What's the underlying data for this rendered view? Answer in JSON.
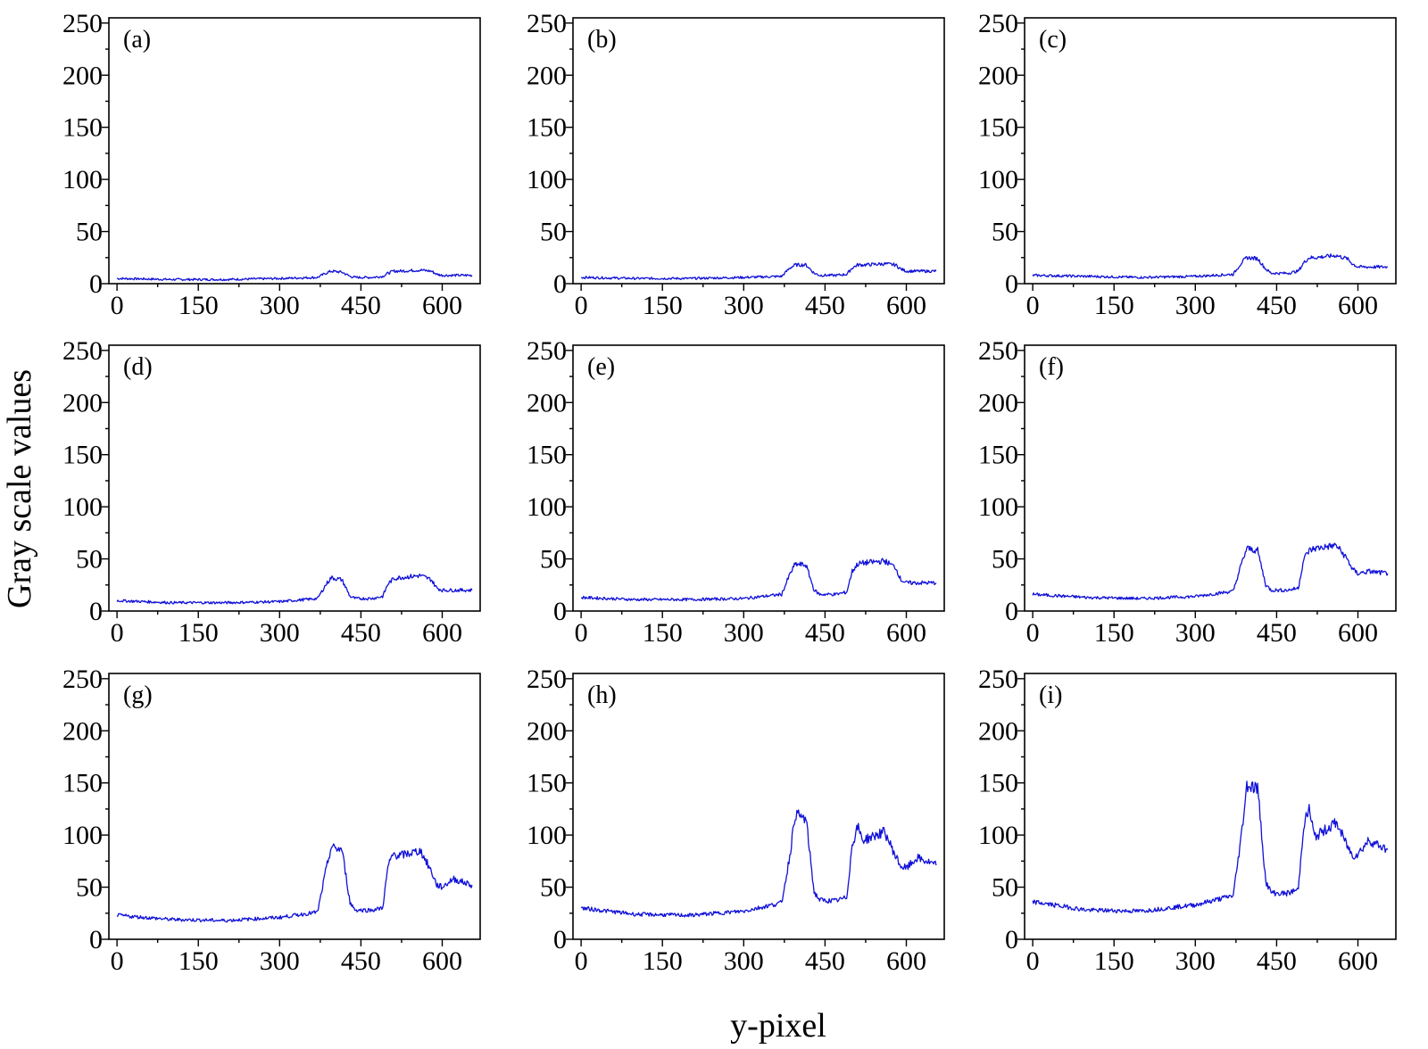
{
  "figure": {
    "ylabel": "Gray scale values",
    "xlabel": "y-pixel"
  },
  "style": {
    "line_color": "#1010d8",
    "axis_color": "#000000"
  },
  "chart_data": [
    {
      "type": "line",
      "panel_label": "(a)",
      "xlim": [
        -15,
        670
      ],
      "ylim": [
        0,
        255
      ],
      "xticks": [
        0,
        150,
        300,
        450,
        600
      ],
      "yticks": [
        0,
        50,
        100,
        150,
        200,
        250
      ],
      "grid": false,
      "series": [
        {
          "x": [
            0,
            100,
            200,
            300,
            370,
            385,
            395,
            415,
            430,
            440,
            450,
            470,
            490,
            500,
            510,
            520,
            560,
            580,
            590,
            600,
            620,
            655
          ],
          "y": [
            5,
            4,
            4,
            5,
            6,
            10,
            12,
            11,
            7,
            6,
            6,
            6,
            7,
            10,
            12,
            12,
            13,
            12,
            9,
            8,
            8,
            8
          ]
        }
      ]
    },
    {
      "type": "line",
      "panel_label": "(b)",
      "xlim": [
        -15,
        670
      ],
      "ylim": [
        0,
        255
      ],
      "xticks": [
        0,
        150,
        300,
        450,
        600
      ],
      "yticks": [
        0,
        50,
        100,
        150,
        200,
        250
      ],
      "grid": false,
      "series": [
        {
          "x": [
            0,
            100,
            200,
            300,
            370,
            385,
            395,
            415,
            430,
            440,
            450,
            470,
            490,
            500,
            510,
            520,
            560,
            580,
            590,
            600,
            620,
            655
          ],
          "y": [
            6,
            5,
            5,
            6,
            7,
            15,
            18,
            18,
            10,
            8,
            8,
            8,
            9,
            15,
            18,
            18,
            19,
            18,
            14,
            12,
            12,
            12
          ]
        }
      ]
    },
    {
      "type": "line",
      "panel_label": "(c)",
      "xlim": [
        -15,
        670
      ],
      "ylim": [
        0,
        255
      ],
      "xticks": [
        0,
        150,
        300,
        450,
        600
      ],
      "yticks": [
        0,
        50,
        100,
        150,
        200,
        250
      ],
      "grid": false,
      "series": [
        {
          "x": [
            0,
            100,
            200,
            300,
            370,
            385,
            395,
            415,
            430,
            440,
            450,
            470,
            490,
            500,
            510,
            520,
            560,
            580,
            590,
            600,
            620,
            655
          ],
          "y": [
            8,
            7,
            6,
            7,
            9,
            20,
            25,
            24,
            14,
            10,
            10,
            10,
            12,
            20,
            25,
            25,
            27,
            24,
            19,
            16,
            16,
            16
          ]
        }
      ]
    },
    {
      "type": "line",
      "panel_label": "(d)",
      "xlim": [
        -15,
        670
      ],
      "ylim": [
        0,
        255
      ],
      "xticks": [
        0,
        150,
        300,
        450,
        600
      ],
      "yticks": [
        0,
        50,
        100,
        150,
        200,
        250
      ],
      "grid": false,
      "series": [
        {
          "x": [
            0,
            100,
            200,
            300,
            370,
            385,
            395,
            415,
            430,
            440,
            450,
            470,
            490,
            500,
            510,
            520,
            560,
            580,
            590,
            600,
            620,
            655
          ],
          "y": [
            10,
            8,
            8,
            9,
            12,
            25,
            32,
            30,
            14,
            12,
            12,
            12,
            14,
            26,
            31,
            32,
            34,
            30,
            22,
            20,
            20,
            20
          ]
        }
      ]
    },
    {
      "type": "line",
      "panel_label": "(e)",
      "xlim": [
        -15,
        670
      ],
      "ylim": [
        0,
        255
      ],
      "xticks": [
        0,
        150,
        300,
        450,
        600
      ],
      "yticks": [
        0,
        50,
        100,
        150,
        200,
        250
      ],
      "grid": false,
      "series": [
        {
          "x": [
            0,
            100,
            200,
            300,
            370,
            385,
            395,
            415,
            430,
            440,
            450,
            470,
            490,
            500,
            510,
            520,
            560,
            580,
            590,
            600,
            620,
            655
          ],
          "y": [
            13,
            11,
            11,
            12,
            16,
            35,
            45,
            44,
            20,
            16,
            16,
            16,
            18,
            38,
            45,
            46,
            48,
            42,
            30,
            27,
            27,
            27
          ]
        }
      ]
    },
    {
      "type": "line",
      "panel_label": "(f)",
      "xlim": [
        -15,
        670
      ],
      "ylim": [
        0,
        255
      ],
      "xticks": [
        0,
        150,
        300,
        450,
        600
      ],
      "yticks": [
        0,
        50,
        100,
        150,
        200,
        250
      ],
      "grid": false,
      "series": [
        {
          "x": [
            0,
            100,
            200,
            300,
            370,
            385,
            395,
            415,
            430,
            440,
            450,
            470,
            490,
            500,
            510,
            520,
            560,
            580,
            590,
            600,
            620,
            655
          ],
          "y": [
            16,
            13,
            12,
            14,
            19,
            45,
            60,
            58,
            25,
            20,
            20,
            20,
            22,
            50,
            58,
            60,
            63,
            50,
            40,
            36,
            38,
            36
          ]
        }
      ]
    },
    {
      "type": "line",
      "panel_label": "(g)",
      "xlim": [
        -15,
        670
      ],
      "ylim": [
        0,
        255
      ],
      "xticks": [
        0,
        150,
        300,
        450,
        600
      ],
      "yticks": [
        0,
        50,
        100,
        150,
        200,
        250
      ],
      "grid": false,
      "series": [
        {
          "x": [
            0,
            100,
            200,
            300,
            370,
            385,
            395,
            415,
            430,
            440,
            450,
            470,
            490,
            500,
            510,
            520,
            560,
            580,
            590,
            600,
            620,
            655
          ],
          "y": [
            23,
            19,
            18,
            21,
            26,
            65,
            88,
            86,
            35,
            28,
            28,
            28,
            30,
            70,
            82,
            80,
            85,
            65,
            52,
            50,
            58,
            52
          ]
        }
      ]
    },
    {
      "type": "line",
      "panel_label": "(h)",
      "xlim": [
        -15,
        670
      ],
      "ylim": [
        0,
        255
      ],
      "xticks": [
        0,
        150,
        300,
        450,
        600
      ],
      "yticks": [
        0,
        50,
        100,
        150,
        200,
        250
      ],
      "grid": false,
      "series": [
        {
          "x": [
            0,
            100,
            200,
            300,
            370,
            385,
            395,
            415,
            430,
            440,
            450,
            470,
            490,
            500,
            510,
            520,
            560,
            580,
            590,
            600,
            620,
            655
          ],
          "y": [
            30,
            24,
            23,
            27,
            35,
            80,
            120,
            115,
            45,
            38,
            37,
            37,
            40,
            90,
            108,
            95,
            103,
            80,
            70,
            68,
            78,
            71
          ]
        }
      ]
    },
    {
      "type": "line",
      "panel_label": "(i)",
      "xlim": [
        -15,
        670
      ],
      "ylim": [
        0,
        255
      ],
      "xticks": [
        0,
        150,
        300,
        450,
        600
      ],
      "yticks": [
        0,
        50,
        100,
        150,
        200,
        250
      ],
      "grid": false,
      "series": [
        {
          "x": [
            0,
            100,
            200,
            300,
            370,
            385,
            395,
            415,
            430,
            440,
            450,
            470,
            490,
            500,
            510,
            520,
            560,
            580,
            590,
            600,
            620,
            655
          ],
          "y": [
            36,
            28,
            27,
            33,
            42,
            100,
            148,
            145,
            55,
            45,
            44,
            44,
            48,
            110,
            125,
            98,
            112,
            90,
            80,
            82,
            95,
            86
          ]
        }
      ]
    }
  ]
}
